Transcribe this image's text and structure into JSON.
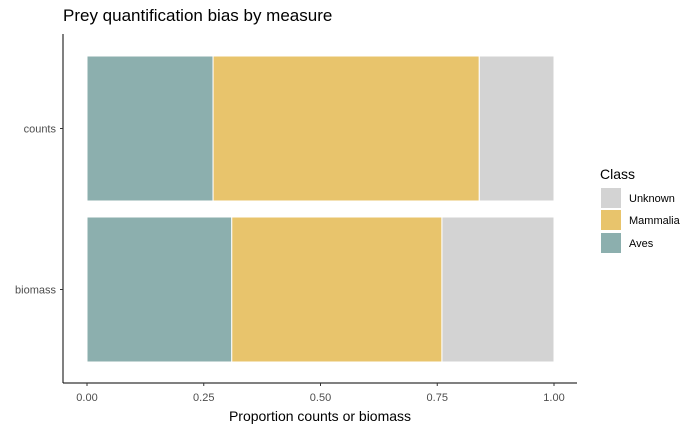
{
  "chart_data": {
    "type": "bar",
    "orientation": "horizontal",
    "stacked": true,
    "title": "Prey quantification bias by measure",
    "xlabel": "Proportion counts or biomass",
    "ylabel": "",
    "xlim": [
      0,
      1
    ],
    "xticks": [
      "0.00",
      "0.25",
      "0.50",
      "0.75",
      "1.00"
    ],
    "xtick_values": [
      0,
      0.25,
      0.5,
      0.75,
      1
    ],
    "categories": [
      "counts",
      "biomass"
    ],
    "series": [
      {
        "name": "Aves",
        "color": "#8CAFAE",
        "values": [
          0.27,
          0.31
        ]
      },
      {
        "name": "Mammalia",
        "color": "#E8C46C",
        "values": [
          0.57,
          0.45
        ]
      },
      {
        "name": "Unknown",
        "color": "#D3D3D3",
        "values": [
          0.16,
          0.24
        ]
      }
    ],
    "legend": {
      "title": "Class",
      "position": "right",
      "order": [
        "Unknown",
        "Mammalia",
        "Aves"
      ]
    },
    "grid": false
  }
}
